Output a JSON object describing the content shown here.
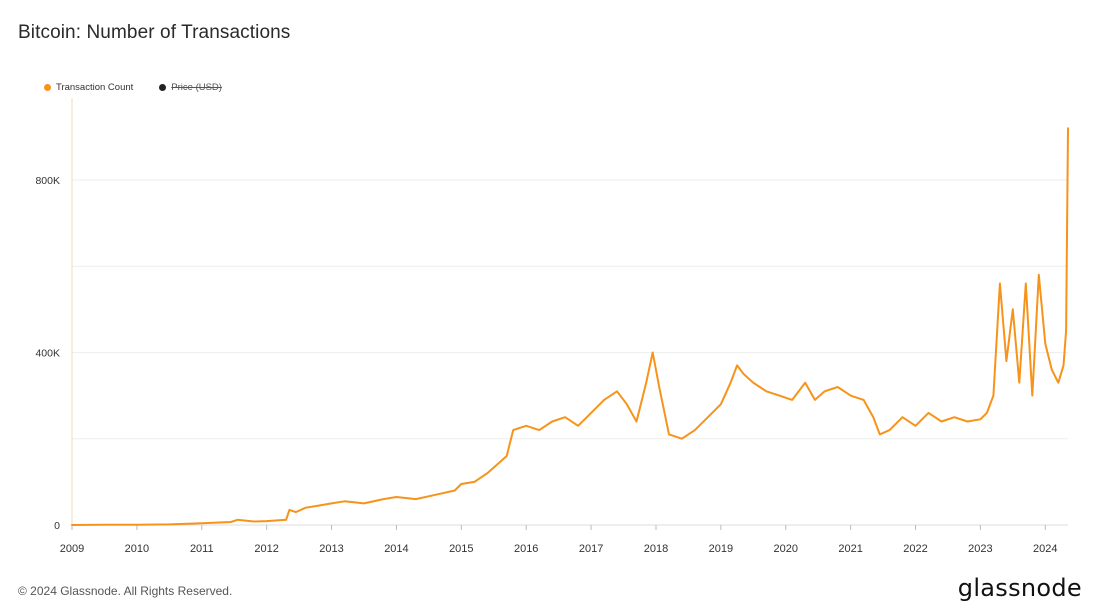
{
  "title": "Bitcoin: Number of Transactions",
  "legend": {
    "items": [
      {
        "label": "Transaction Count",
        "color": "#f7931a",
        "active": true
      },
      {
        "label": "Price (USD)",
        "color": "#222222",
        "active": false
      }
    ]
  },
  "footer": {
    "copyright": "© 2024 Glassnode. All Rights Reserved.",
    "brand": "glassnode"
  },
  "chart_data": {
    "type": "line",
    "title": "Bitcoin: Number of Transactions",
    "xlabel": "",
    "ylabel": "",
    "x_ticks": [
      "2009",
      "2010",
      "2011",
      "2012",
      "2013",
      "2014",
      "2015",
      "2016",
      "2017",
      "2018",
      "2019",
      "2020",
      "2021",
      "2022",
      "2023",
      "2024"
    ],
    "y_ticks": [
      {
        "value": 0,
        "label": "0"
      },
      {
        "value": 400000,
        "label": "400K"
      },
      {
        "value": 800000,
        "label": "800K"
      }
    ],
    "xlim": [
      2009.0,
      2024.35
    ],
    "ylim": [
      0,
      990000
    ],
    "grid": true,
    "legend_position": "top-left",
    "series": [
      {
        "name": "Transaction Count",
        "color": "#f7931a",
        "x": [
          2009.0,
          2009.5,
          2010.0,
          2010.5,
          2011.0,
          2011.45,
          2011.55,
          2011.8,
          2012.0,
          2012.3,
          2012.35,
          2012.45,
          2012.6,
          2012.8,
          2013.0,
          2013.2,
          2013.5,
          2013.8,
          2014.0,
          2014.3,
          2014.6,
          2014.9,
          2015.0,
          2015.2,
          2015.4,
          2015.55,
          2015.7,
          2015.8,
          2016.0,
          2016.2,
          2016.4,
          2016.6,
          2016.8,
          2017.0,
          2017.2,
          2017.4,
          2017.55,
          2017.7,
          2017.85,
          2017.95,
          2018.05,
          2018.2,
          2018.4,
          2018.6,
          2018.8,
          2019.0,
          2019.15,
          2019.25,
          2019.35,
          2019.5,
          2019.7,
          2019.9,
          2020.1,
          2020.3,
          2020.45,
          2020.6,
          2020.8,
          2021.0,
          2021.2,
          2021.35,
          2021.45,
          2021.6,
          2021.8,
          2022.0,
          2022.2,
          2022.4,
          2022.6,
          2022.8,
          2023.0,
          2023.1,
          2023.2,
          2023.3,
          2023.4,
          2023.5,
          2023.6,
          2023.7,
          2023.8,
          2023.9,
          2024.0,
          2024.1,
          2024.2,
          2024.28,
          2024.32,
          2024.35
        ],
        "values": [
          0,
          500,
          800,
          1500,
          4000,
          7000,
          12000,
          8000,
          9000,
          12000,
          35000,
          30000,
          40000,
          45000,
          50000,
          55000,
          50000,
          60000,
          65000,
          60000,
          70000,
          80000,
          95000,
          100000,
          120000,
          140000,
          160000,
          220000,
          230000,
          220000,
          240000,
          250000,
          230000,
          260000,
          290000,
          310000,
          280000,
          240000,
          330000,
          400000,
          320000,
          210000,
          200000,
          220000,
          250000,
          280000,
          330000,
          370000,
          350000,
          330000,
          310000,
          300000,
          290000,
          330000,
          290000,
          310000,
          320000,
          300000,
          290000,
          250000,
          210000,
          220000,
          250000,
          230000,
          260000,
          240000,
          250000,
          240000,
          245000,
          260000,
          300000,
          560000,
          380000,
          500000,
          330000,
          560000,
          300000,
          580000,
          420000,
          360000,
          330000,
          370000,
          450000,
          920000
        ]
      },
      {
        "name": "Price (USD)",
        "color": "#222222",
        "hidden": true,
        "x": [],
        "values": []
      }
    ]
  }
}
